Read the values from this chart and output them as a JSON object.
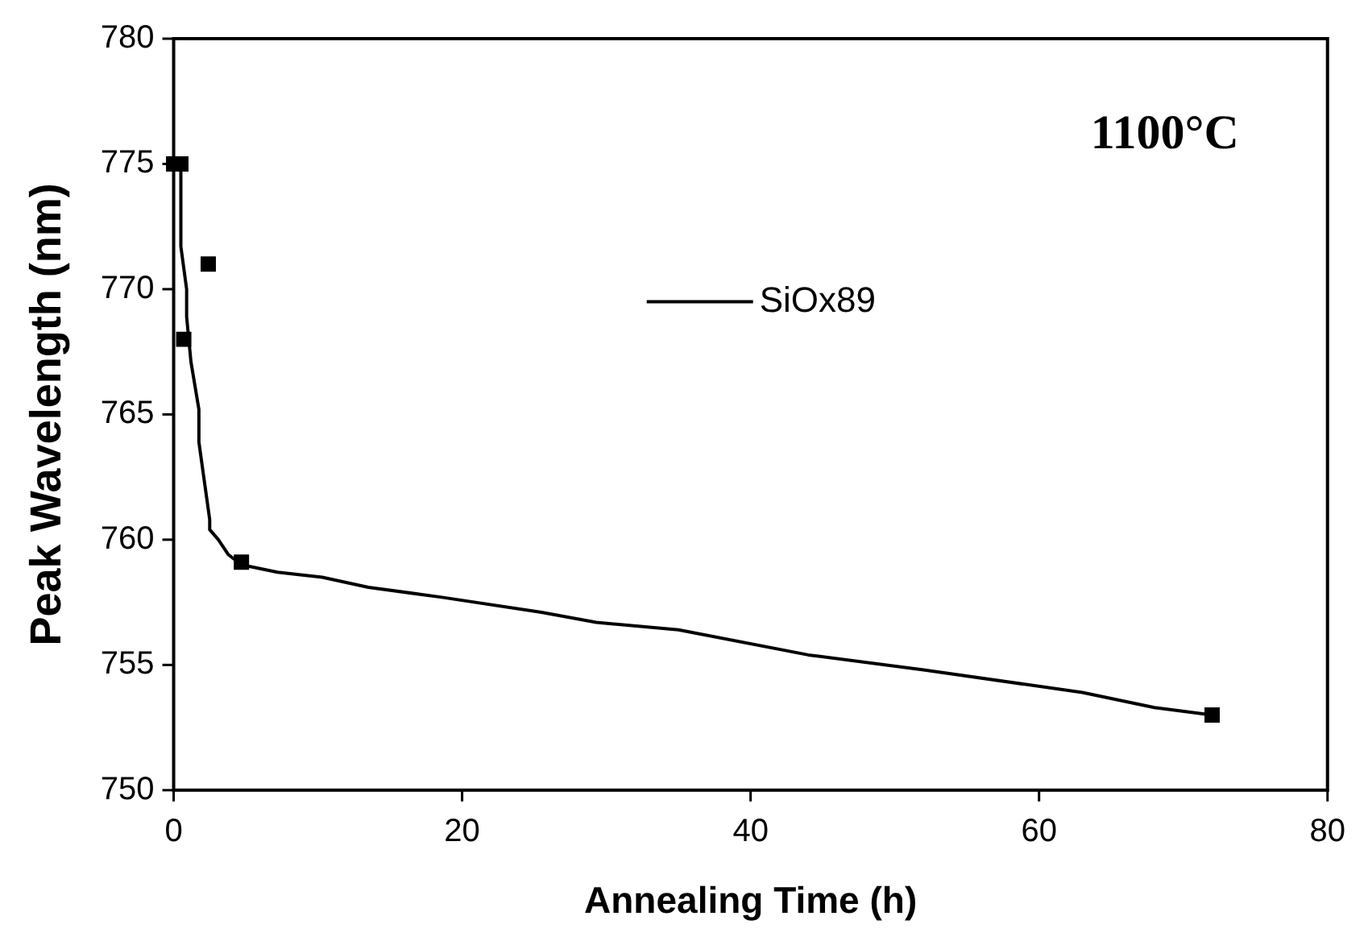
{
  "chart_data": {
    "type": "line",
    "xlabel": "Annealing Time (h)",
    "ylabel": "Peak Wavelength (nm)",
    "annotations": [
      "1100°C"
    ],
    "xlim": [
      0,
      80
    ],
    "xticks": [
      0,
      20,
      40,
      60,
      80
    ],
    "ylim": [
      750,
      780
    ],
    "yticks": [
      750,
      755,
      760,
      765,
      770,
      775,
      780
    ],
    "grid": false,
    "legend": "top",
    "series": [
      {
        "type": "scatter",
        "color": "#000000",
        "marker": "square",
        "x": [
          0,
          0.5,
          0.7,
          2.4,
          4.7,
          72
        ],
        "values": [
          775,
          775,
          768,
          771,
          759.1,
          753
        ]
      },
      {
        "type": "line",
        "name": "SiOx89",
        "color": "#000000",
        "marker": "none",
        "line_style": "solid",
        "x": [
          0.5,
          0.5,
          0.9,
          0.9,
          1.2,
          1.75,
          1.75,
          2.5,
          2.5,
          3.1,
          3.8,
          4.7,
          7.2,
          10.3,
          13.5,
          18.6,
          25.5,
          29.3,
          35,
          44,
          52,
          63,
          68,
          72
        ],
        "values": [
          775,
          771.7,
          770,
          768.9,
          767.1,
          765.2,
          763.9,
          760.8,
          760.4,
          760,
          759.4,
          759,
          758.7,
          758.5,
          758.1,
          757.7,
          757.1,
          756.7,
          756.4,
          755.4,
          754.8,
          753.9,
          753.3,
          753
        ]
      }
    ]
  }
}
